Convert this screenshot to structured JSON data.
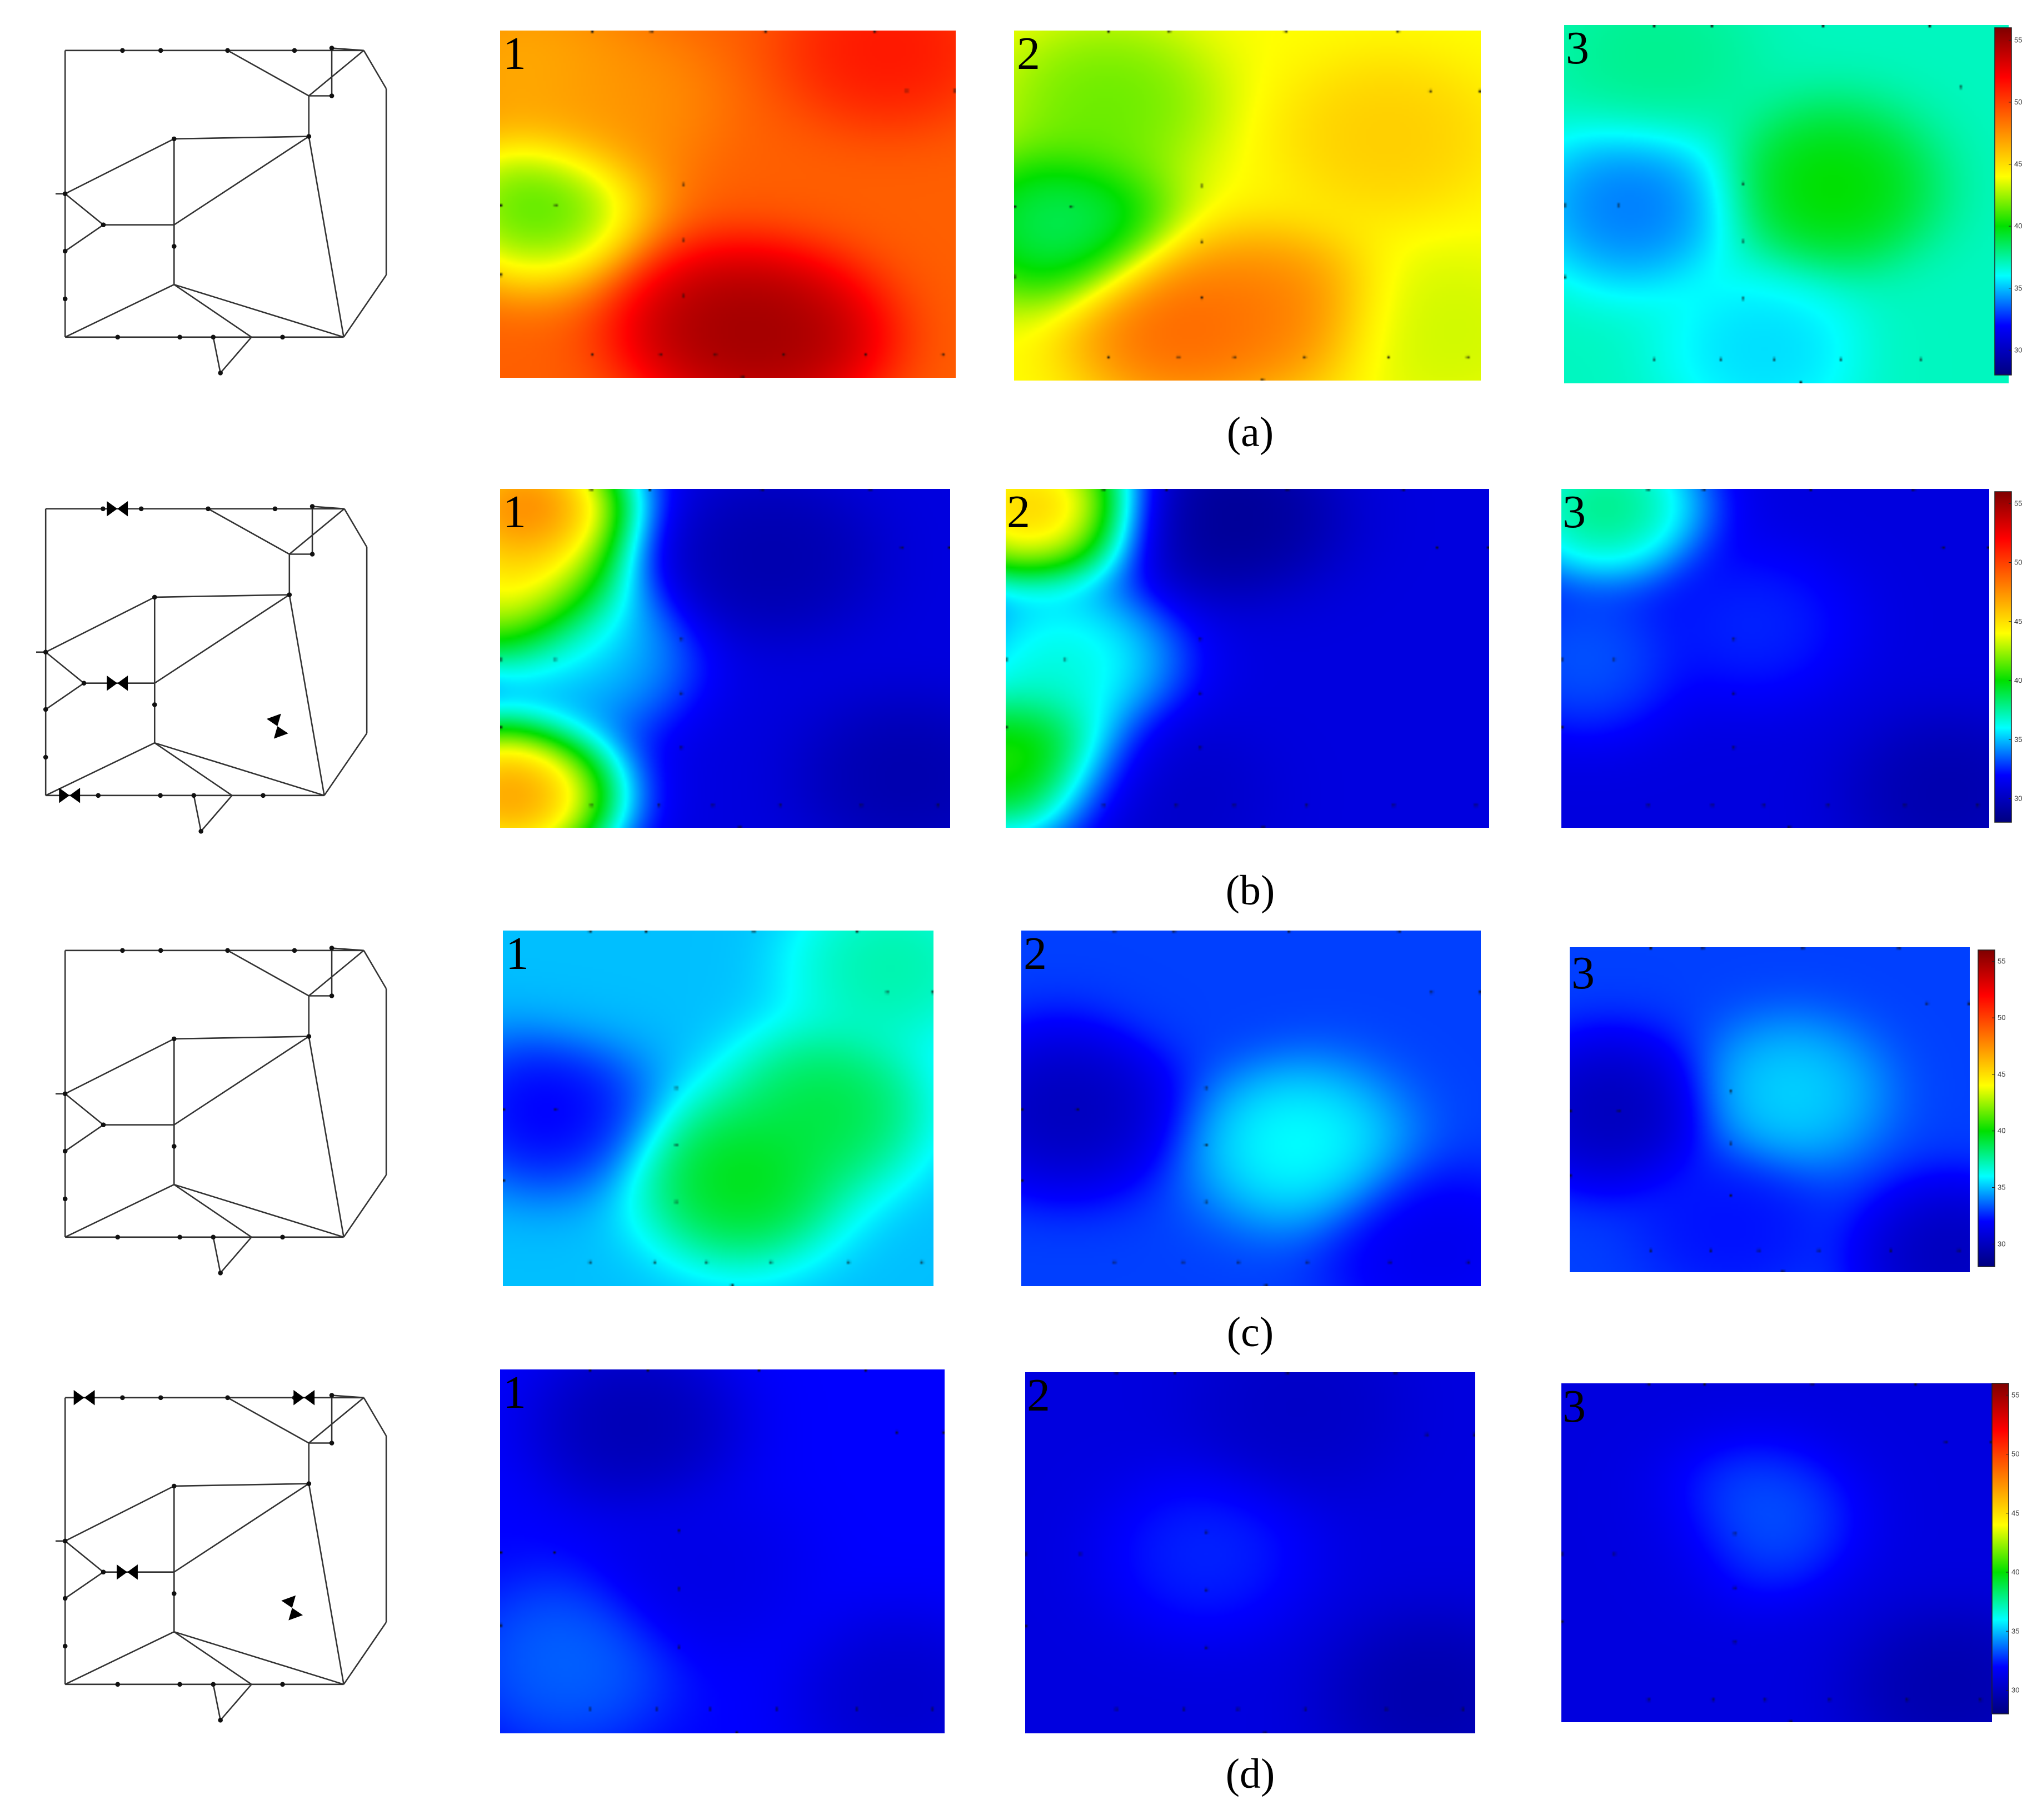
{
  "captions": [
    "(a)",
    "(b)",
    "(c)",
    "(d)"
  ],
  "map_labels": [
    "1",
    "2",
    "3"
  ],
  "colorbar": {
    "ticks": [
      "55",
      "50",
      "45",
      "40",
      "35",
      "30"
    ],
    "ticks_d": [
      "55",
      "50",
      "45",
      "40",
      "35",
      "30"
    ]
  },
  "colors": {
    "scale": [
      "#00007f",
      "#0000ff",
      "#00ffff",
      "#00e000",
      "#ffff00",
      "#ff7f00",
      "#ff0000",
      "#7f0000"
    ],
    "network_line": "#333333",
    "sensor_dot": "#111111"
  },
  "chart_data": {
    "type": "heatmap",
    "value_range": [
      28,
      56
    ],
    "rows": [
      {
        "caption": "(a)",
        "valves": 0,
        "maps": [
          {
            "label": "1",
            "base": 49,
            "blobs": [
              {
                "x": 0.08,
                "y": 0.5,
                "v": 39
              },
              {
                "x": 0.05,
                "y": 0.1,
                "v": 46
              },
              {
                "x": 0.48,
                "y": 0.85,
                "v": 56
              },
              {
                "x": 0.62,
                "y": 0.88,
                "v": 56
              },
              {
                "x": 0.25,
                "y": 0.2,
                "v": 47
              },
              {
                "x": 0.85,
                "y": 0.05,
                "v": 52
              }
            ]
          },
          {
            "label": "2",
            "base": 44,
            "blobs": [
              {
                "x": 0.1,
                "y": 0.55,
                "v": 37
              },
              {
                "x": 0.2,
                "y": 0.2,
                "v": 41
              },
              {
                "x": 0.55,
                "y": 0.8,
                "v": 49
              },
              {
                "x": 0.35,
                "y": 0.85,
                "v": 50
              },
              {
                "x": 0.8,
                "y": 0.3,
                "v": 46
              },
              {
                "x": 0.9,
                "y": 0.85,
                "v": 43
              }
            ]
          },
          {
            "label": "3",
            "base": 37,
            "blobs": [
              {
                "x": 0.15,
                "y": 0.5,
                "v": 33
              },
              {
                "x": 0.6,
                "y": 0.45,
                "v": 41
              },
              {
                "x": 0.45,
                "y": 0.9,
                "v": 35
              },
              {
                "x": 0.2,
                "y": 0.1,
                "v": 38
              },
              {
                "x": 0.9,
                "y": 0.9,
                "v": 37
              }
            ]
          }
        ]
      },
      {
        "caption": "(b)",
        "valves": 3,
        "maps": [
          {
            "label": "1",
            "base": 31,
            "blobs": [
              {
                "x": 0.03,
                "y": 0.3,
                "v": 48
              },
              {
                "x": 0.05,
                "y": 0.05,
                "v": 53
              },
              {
                "x": 0.02,
                "y": 0.9,
                "v": 52
              },
              {
                "x": 0.2,
                "y": 0.5,
                "v": 36
              },
              {
                "x": 0.6,
                "y": 0.2,
                "v": 29
              },
              {
                "x": 0.9,
                "y": 0.85,
                "v": 29
              }
            ]
          },
          {
            "label": "2",
            "base": 31,
            "blobs": [
              {
                "x": 0.05,
                "y": 0.05,
                "v": 50
              },
              {
                "x": 0.02,
                "y": 0.8,
                "v": 44
              },
              {
                "x": 0.12,
                "y": 0.5,
                "v": 38
              },
              {
                "x": 0.45,
                "y": 0.08,
                "v": 28
              },
              {
                "x": 0.3,
                "y": 0.9,
                "v": 30
              }
            ]
          },
          {
            "label": "3",
            "base": 31,
            "blobs": [
              {
                "x": 0.1,
                "y": 0.05,
                "v": 40
              },
              {
                "x": 0.05,
                "y": 0.5,
                "v": 34
              },
              {
                "x": 0.45,
                "y": 0.4,
                "v": 33
              },
              {
                "x": 0.9,
                "y": 0.9,
                "v": 29
              }
            ]
          }
        ]
      },
      {
        "caption": "(c)",
        "valves": 0,
        "maps": [
          {
            "label": "1",
            "base": 35,
            "blobs": [
              {
                "x": 0.1,
                "y": 0.5,
                "v": 31
              },
              {
                "x": 0.55,
                "y": 0.7,
                "v": 41
              },
              {
                "x": 0.75,
                "y": 0.5,
                "v": 40
              },
              {
                "x": 0.2,
                "y": 0.1,
                "v": 35
              },
              {
                "x": 0.9,
                "y": 0.1,
                "v": 38
              }
            ]
          },
          {
            "label": "2",
            "base": 33,
            "blobs": [
              {
                "x": 0.1,
                "y": 0.5,
                "v": 29
              },
              {
                "x": 0.6,
                "y": 0.6,
                "v": 37
              },
              {
                "x": 0.4,
                "y": 0.1,
                "v": 33
              },
              {
                "x": 0.9,
                "y": 0.9,
                "v": 31
              }
            ]
          },
          {
            "label": "3",
            "base": 33,
            "blobs": [
              {
                "x": 0.1,
                "y": 0.5,
                "v": 29
              },
              {
                "x": 0.55,
                "y": 0.45,
                "v": 36
              },
              {
                "x": 0.4,
                "y": 0.85,
                "v": 32
              },
              {
                "x": 0.95,
                "y": 0.95,
                "v": 29
              }
            ]
          }
        ]
      },
      {
        "caption": "(d)",
        "valves": 4,
        "maps": [
          {
            "label": "1",
            "base": 32,
            "blobs": [
              {
                "x": 0.3,
                "y": 0.15,
                "v": 29
              },
              {
                "x": 0.45,
                "y": 0.55,
                "v": 31
              },
              {
                "x": 0.15,
                "y": 0.8,
                "v": 34
              },
              {
                "x": 0.9,
                "y": 0.9,
                "v": 30
              }
            ]
          },
          {
            "label": "2",
            "base": 31,
            "blobs": [
              {
                "x": 0.4,
                "y": 0.5,
                "v": 33
              },
              {
                "x": 0.9,
                "y": 0.9,
                "v": 29
              },
              {
                "x": 0.6,
                "y": 0.1,
                "v": 30
              }
            ]
          },
          {
            "label": "3",
            "base": 31,
            "blobs": [
              {
                "x": 0.45,
                "y": 0.4,
                "v": 34
              },
              {
                "x": 0.9,
                "y": 0.9,
                "v": 29
              },
              {
                "x": 0.2,
                "y": 0.5,
                "v": 31
              }
            ]
          }
        ]
      }
    ]
  }
}
